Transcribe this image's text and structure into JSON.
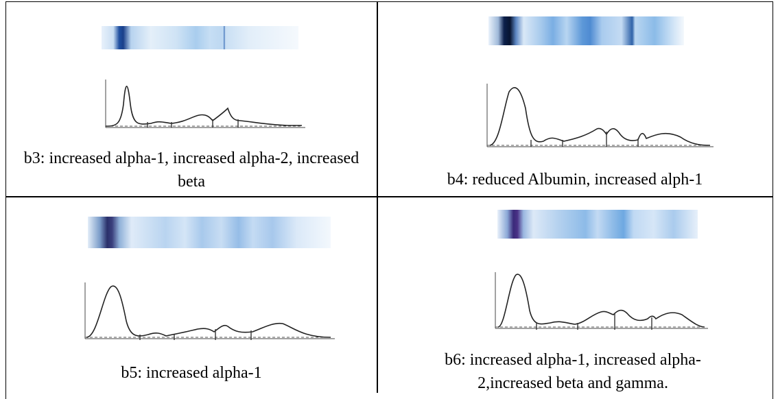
{
  "cells": [
    {
      "caption": "b3: increased alpha-1, increased alpha-2, increased beta"
    },
    {
      "caption": "b4: reduced Albumin, increased alph-1"
    },
    {
      "caption": "b5: increased alpha-1"
    },
    {
      "caption": "b6: increased alpha-1, increased alpha-2,increased beta and gamma."
    }
  ]
}
